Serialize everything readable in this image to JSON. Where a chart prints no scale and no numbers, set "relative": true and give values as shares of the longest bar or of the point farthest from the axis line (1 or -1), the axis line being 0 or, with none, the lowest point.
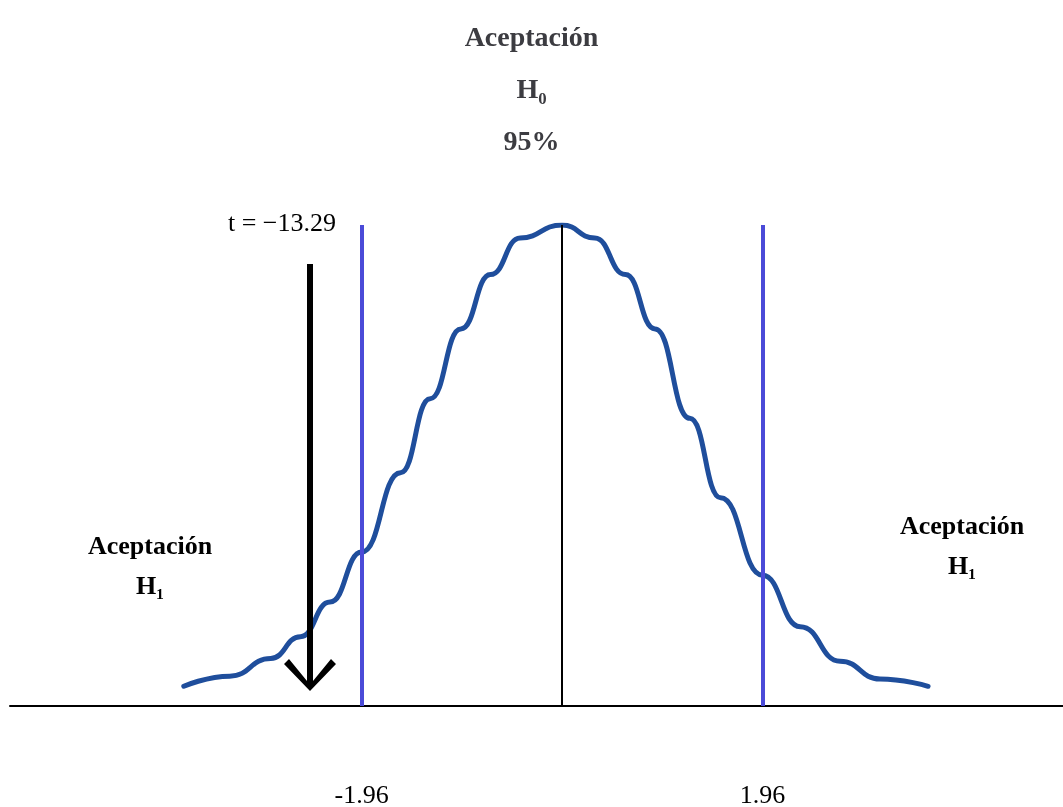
{
  "chart_data": {
    "type": "line",
    "title": "Aceptación\nH₀\n95%",
    "relative": true,
    "x": [
      -3.7,
      -3.25,
      -2.85,
      -2.56,
      -2.27,
      -1.96,
      -1.58,
      -1.29,
      -0.99,
      -0.7,
      -0.41,
      0,
      0.32,
      0.62,
      0.91,
      1.25,
      1.55,
      1.96,
      2.33,
      2.72,
      3.11,
      3.58
    ],
    "series": [
      {
        "color": "#1f4e9c",
        "values": [
          0.041,
          0.062,
          0.099,
          0.144,
          0.216,
          0.32,
          0.485,
          0.639,
          0.784,
          0.897,
          0.973,
          1,
          0.973,
          0.897,
          0.784,
          0.598,
          0.433,
          0.272,
          0.165,
          0.093,
          0.056,
          0.041
        ]
      }
    ],
    "xlim": [
      -5.4,
      4.9
    ],
    "xticks": [
      -1.96,
      1.96
    ],
    "tick_labels": "x",
    "marker": "none",
    "line_style": "solid",
    "ref_lines": [
      {
        "axis": "x",
        "value": -1.96,
        "color": "#4b4bd8"
      },
      {
        "axis": "x",
        "value": 1.96,
        "color": "#4b4bd8"
      },
      {
        "axis": "x",
        "value": 0,
        "color": "#000000"
      }
    ],
    "annotations": [
      "t = −13.29",
      "Aceptación\nH₁",
      "Aceptación\nH₁"
    ]
  }
}
